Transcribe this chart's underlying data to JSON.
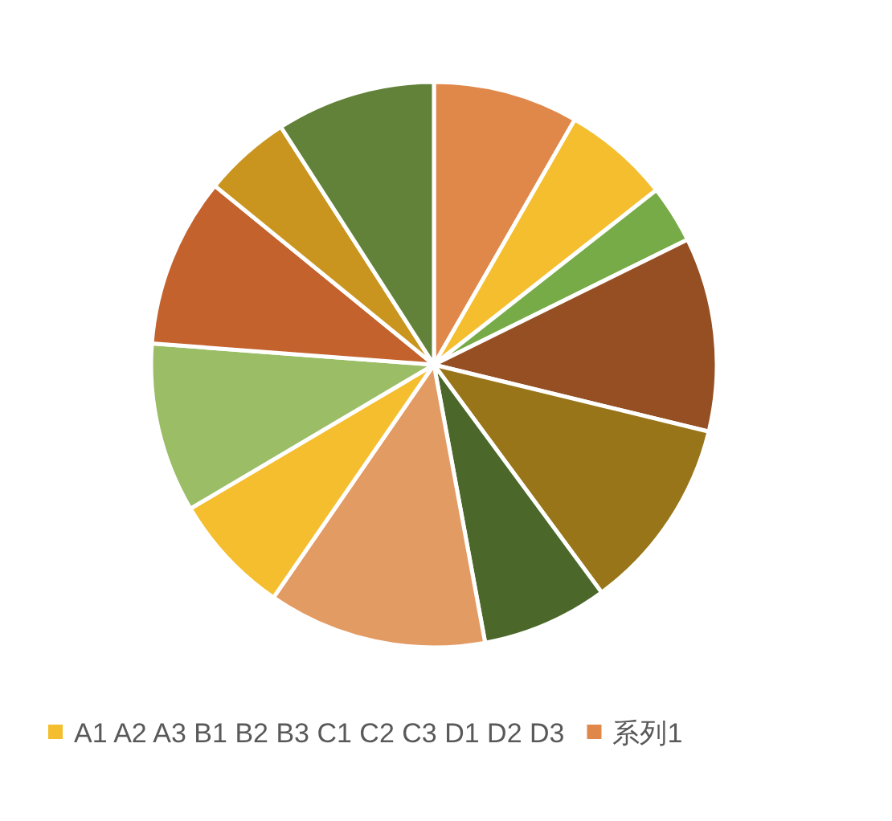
{
  "chart_data": {
    "type": "pie",
    "categories": [
      "A1",
      "A2",
      "A3",
      "B1",
      "B2",
      "B3",
      "C1",
      "C2",
      "C3",
      "D1",
      "D2",
      "D3"
    ],
    "series": [
      {
        "name": "系列1",
        "values": [
          8.3,
          6.1,
          3.3,
          11.1,
          11.1,
          7.2,
          12.5,
          6.9,
          9.7,
          9.7,
          5.0,
          9.1
        ]
      }
    ],
    "colors": [
      "#e0874a",
      "#f4be2f",
      "#76ab47",
      "#954f22",
      "#987519",
      "#4b672a",
      "#e39b64",
      "#f4be2f",
      "#9bbd66",
      "#c4622d",
      "#c9951f",
      "#618238"
    ],
    "legend": "bottom"
  }
}
